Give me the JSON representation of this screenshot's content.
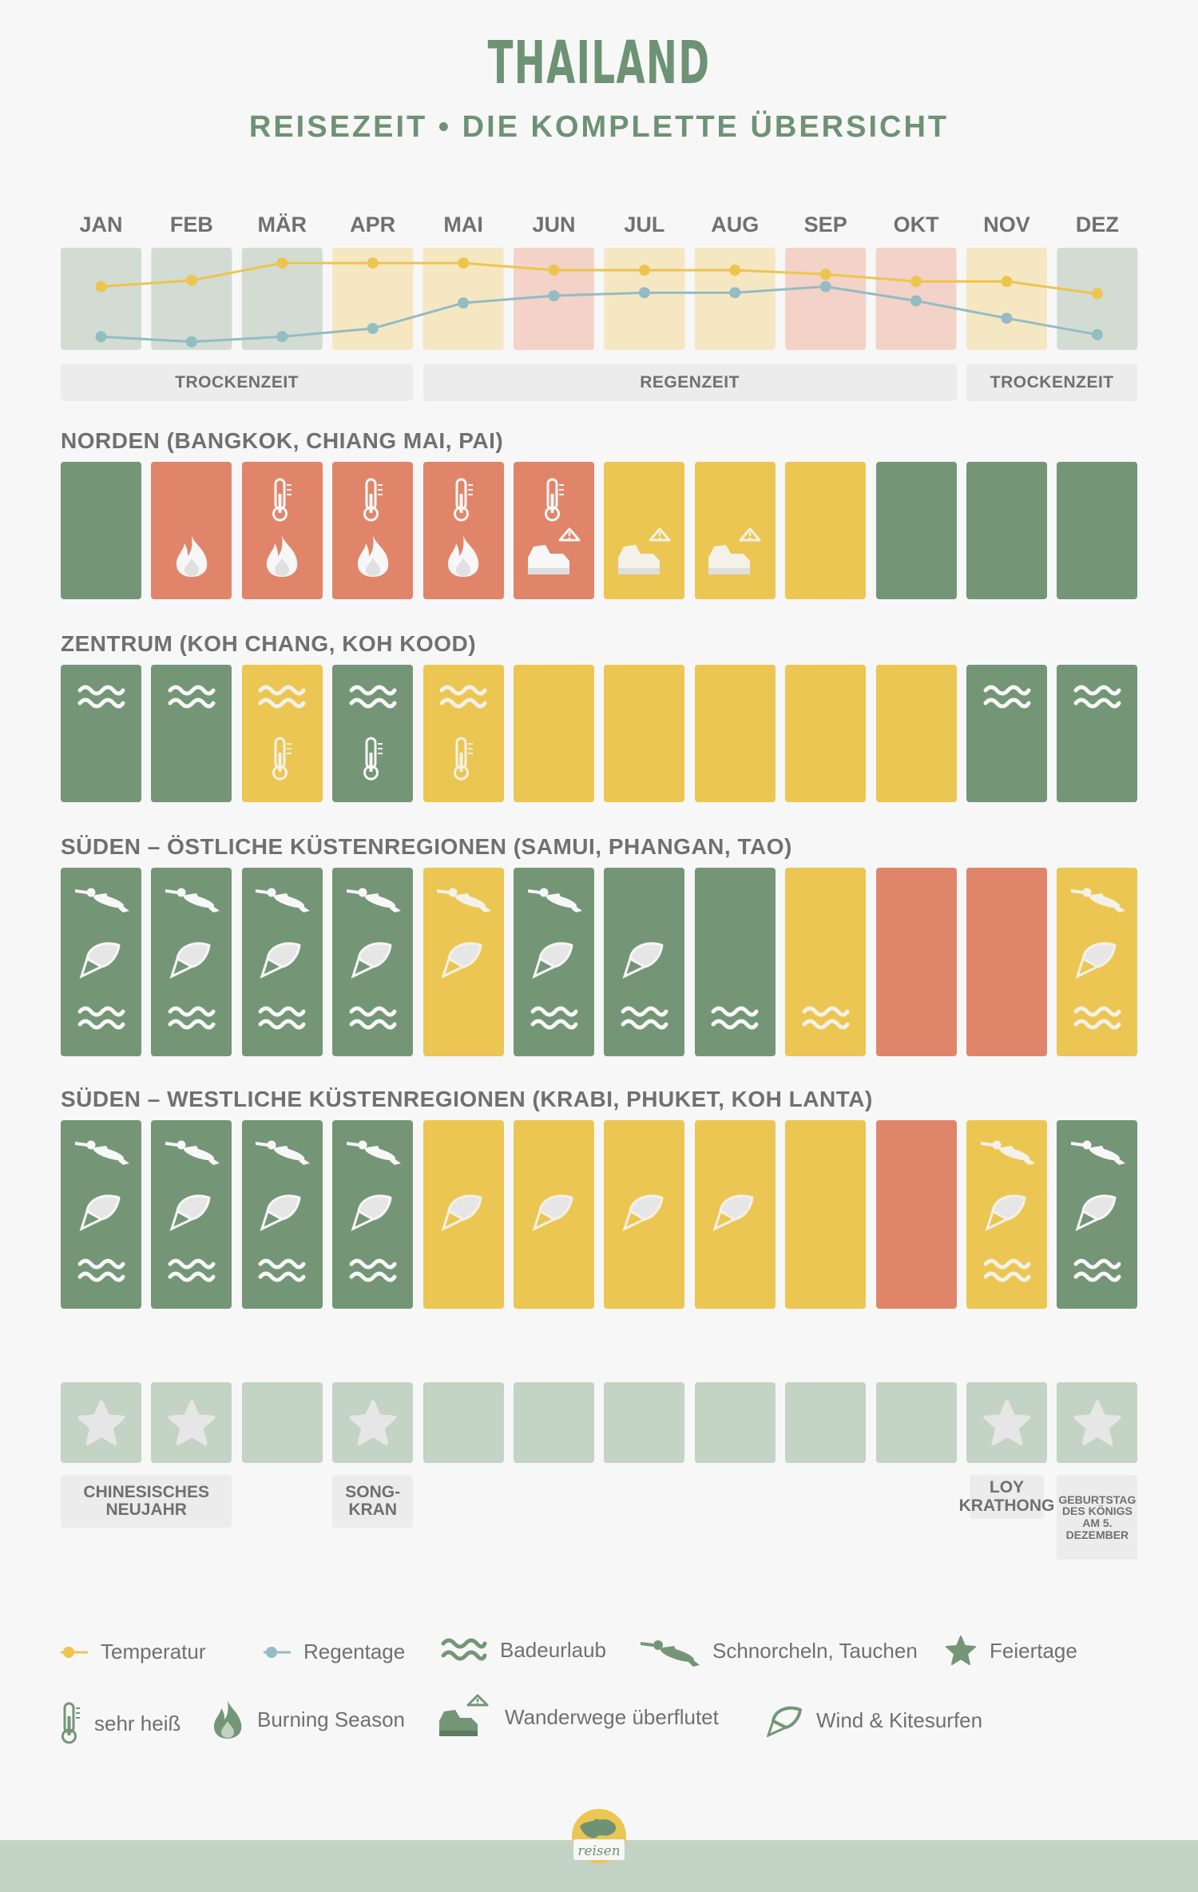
{
  "title": "THAILAND",
  "subtitle": "REISEZEIT • DIE KOMPLETTE ÜBERSICHT",
  "months": [
    "JAN",
    "FEB",
    "MÄR",
    "APR",
    "MAI",
    "JUN",
    "JUL",
    "AUG",
    "SEP",
    "OKT",
    "NOV",
    "DEZ"
  ],
  "climate_bg": [
    "green",
    "green",
    "green",
    "yellow",
    "yellow",
    "red",
    "yellow",
    "yellow",
    "red",
    "red",
    "yellow",
    "green"
  ],
  "seasons": [
    {
      "label": "TROCKENZEIT",
      "from": 0,
      "to": 3
    },
    {
      "label": "REGENZEIT",
      "from": 4,
      "to": 9
    },
    {
      "label": "TROCKENZEIT",
      "from": 10,
      "to": 11
    }
  ],
  "chart_data": {
    "type": "line",
    "title": "",
    "categories": [
      "JAN",
      "FEB",
      "MÄR",
      "APR",
      "MAI",
      "JUN",
      "JUL",
      "AUG",
      "SEP",
      "OKT",
      "NOV",
      "DEZ"
    ],
    "series": [
      {
        "name": "Temperatur",
        "color": "#edc54e",
        "values": [
          0.62,
          0.68,
          0.85,
          0.85,
          0.85,
          0.78,
          0.78,
          0.78,
          0.74,
          0.67,
          0.67,
          0.55
        ]
      },
      {
        "name": "Regentage",
        "color": "#94bcc3",
        "values": [
          0.13,
          0.08,
          0.13,
          0.21,
          0.46,
          0.53,
          0.56,
          0.56,
          0.62,
          0.48,
          0.31,
          0.15
        ]
      }
    ],
    "ylim": [
      0,
      1
    ]
  },
  "regions": [
    {
      "title": "NORDEN (BANGKOK, CHIANG MAI, PAI)",
      "colors": [
        "g",
        "o",
        "o",
        "o",
        "o",
        "o",
        "y",
        "y",
        "y",
        "g",
        "g",
        "g"
      ],
      "icons": [
        [],
        [
          "fire"
        ],
        [
          "thermo",
          "fire"
        ],
        [
          "thermo",
          "fire"
        ],
        [
          "thermo",
          "fire"
        ],
        [
          "thermo",
          "boot"
        ],
        [
          "boot"
        ],
        [
          "boot"
        ],
        [],
        [],
        [],
        []
      ]
    },
    {
      "title": "ZENTRUM (KOH CHANG, KOH KOOD)",
      "colors": [
        "g",
        "g",
        "y",
        "g",
        "y",
        "y",
        "y",
        "y",
        "y",
        "y",
        "g",
        "g"
      ],
      "icons": [
        [
          "wave"
        ],
        [
          "wave"
        ],
        [
          "wave",
          "thermo"
        ],
        [
          "wave",
          "thermo"
        ],
        [
          "wave",
          "thermo"
        ],
        [],
        [],
        [],
        [],
        [],
        [
          "wave"
        ],
        [
          "wave"
        ]
      ]
    },
    {
      "title": "SÜDEN – ÖSTLICHE KÜSTENREGIONEN (SAMUI, PHANGAN, TAO)",
      "colors": [
        "g",
        "g",
        "g",
        "g",
        "y",
        "g",
        "g",
        "g",
        "y",
        "o",
        "o",
        "y"
      ],
      "icons": [
        [
          "diver",
          "kite",
          "wave"
        ],
        [
          "diver",
          "kite",
          "wave"
        ],
        [
          "diver",
          "kite",
          "wave"
        ],
        [
          "diver",
          "kite",
          "wave"
        ],
        [
          "diver",
          "kite"
        ],
        [
          "diver",
          "kite",
          "wave"
        ],
        [
          "kite",
          "wave"
        ],
        [
          "wave"
        ],
        [
          "wave"
        ],
        [],
        [],
        [
          "diver",
          "kite",
          "wave"
        ]
      ]
    },
    {
      "title": "SÜDEN – WESTLICHE KÜSTENREGIONEN (KRABI, PHUKET, KOH LANTA)",
      "colors": [
        "g",
        "g",
        "g",
        "g",
        "y",
        "y",
        "y",
        "y",
        "y",
        "o",
        "y",
        "g"
      ],
      "icons": [
        [
          "diver",
          "kite",
          "wave"
        ],
        [
          "diver",
          "kite",
          "wave"
        ],
        [
          "diver",
          "kite",
          "wave"
        ],
        [
          "diver",
          "kite",
          "wave"
        ],
        [
          "kite"
        ],
        [
          "kite"
        ],
        [
          "kite"
        ],
        [
          "kite"
        ],
        [],
        [],
        [
          "diver",
          "kite",
          "wave"
        ],
        [
          "diver",
          "kite",
          "wave"
        ]
      ]
    }
  ],
  "holidays_stars": [
    true,
    true,
    false,
    true,
    false,
    false,
    false,
    false,
    false,
    false,
    true,
    true
  ],
  "holidays": [
    {
      "label": "CHINESISCHES NEUJAHR",
      "from": 0,
      "to": 1
    },
    {
      "label": "SONG- KRAN",
      "from": 3,
      "to": 3
    },
    {
      "label": "LOY KRATHONG",
      "from": 10,
      "to": 10
    },
    {
      "label": "GEBURTSTAG DES KÖNIGS AM 5. DEZEMBER",
      "from": 11,
      "to": 11
    }
  ],
  "legend": {
    "temperature": "Temperatur",
    "rain": "Regentage",
    "bathing": "Badeurlaub",
    "diving": "Schnorcheln, Tauchen",
    "holidays": "Feiertage",
    "hot": "sehr heiß",
    "burning": "Burning Season",
    "flooded": "Wanderwege überflutet",
    "kite": "Wind & Kitesurfen"
  },
  "logo_text": "reisen",
  "colors": {
    "green": "#749676",
    "yellow": "#ecc652",
    "orange": "#e0856a",
    "text": "#707070",
    "title": "#6e9274"
  }
}
